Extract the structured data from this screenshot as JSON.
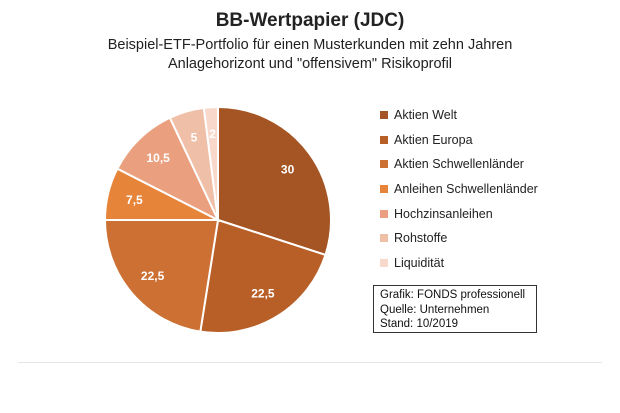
{
  "chart_data": {
    "type": "pie",
    "title": "BB-Wertpapier (JDC)",
    "subtitle_lines": [
      "Beispiel-ETF-Portfolio für einen Musterkunden mit zehn Jahren",
      "Anlagehorizont und \"offensivem\" Risikoprofil"
    ],
    "slices": [
      {
        "label": "Aktien Welt",
        "value": 30,
        "display": "30",
        "color": "#a55424",
        "text_color": "#ffffff"
      },
      {
        "label": "Aktien Europa",
        "value": 22.5,
        "display": "22,5",
        "color": "#b85e27",
        "text_color": "#ffffff"
      },
      {
        "label": "Aktien Schwellenländer",
        "value": 22.5,
        "display": "22,5",
        "color": "#cc7033",
        "text_color": "#ffffff"
      },
      {
        "label": "Anleihen Schwellenländer",
        "value": 7.5,
        "display": "7,5",
        "color": "#e6843a",
        "text_color": "#ffffff"
      },
      {
        "label": "Hochzinsanleihen",
        "value": 10.5,
        "display": "10,5",
        "color": "#eaa07e",
        "text_color": "#ffffff"
      },
      {
        "label": "Rohstoffe",
        "value": 5,
        "display": "5",
        "color": "#f0bfa8",
        "text_color": "#ffffff"
      },
      {
        "label": "Liquidität",
        "value": 2,
        "display": "2",
        "color": "#f7d8cb",
        "text_color": "#ffffff"
      }
    ],
    "start_angle": "12 o'clock",
    "direction": "clockwise",
    "legend_position": "right"
  },
  "source_box": {
    "lines": [
      "Grafik: FONDS professionell",
      "Quelle: Unternehmen",
      "Stand: 10/2019"
    ]
  }
}
